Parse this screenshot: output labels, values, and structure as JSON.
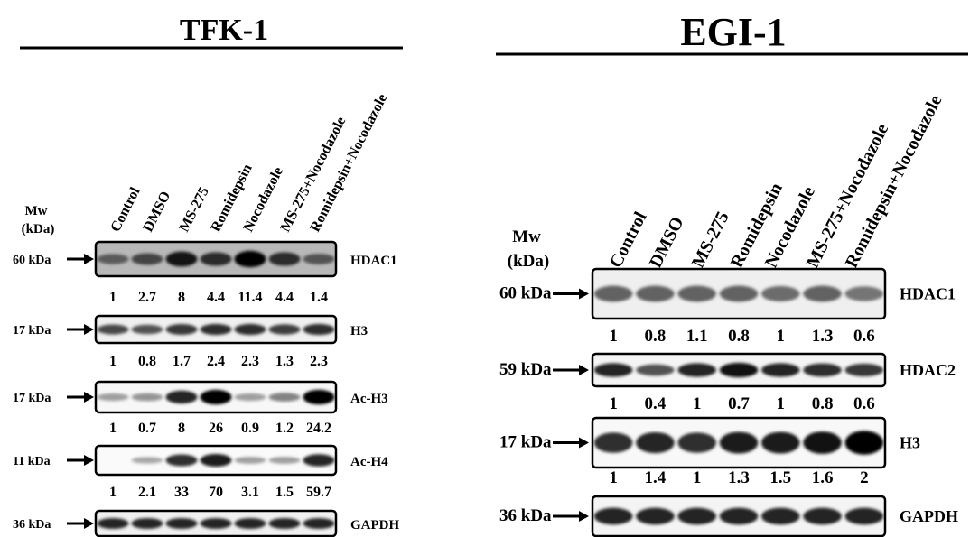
{
  "panels": [
    {
      "title": "TFK-1",
      "mw_label": [
        "Mw",
        "(kDa)"
      ],
      "lanes": [
        "Control",
        "DMSO",
        "MS-275",
        "Romidepsin",
        "Nocodazole",
        "MS-275+Nocodazole",
        "Romidepsin+Nocodazole"
      ],
      "blots": [
        {
          "name": "HDAC1",
          "mw": "60 kDa",
          "values": [
            "1",
            "2.7",
            "8",
            "4.4",
            "11.4",
            "4.4",
            "1.4"
          ],
          "background": "#b8b8b8",
          "intensity": [
            0.35,
            0.5,
            0.85,
            0.7,
            1.0,
            0.7,
            0.4
          ]
        },
        {
          "name": "H3",
          "mw": "17 kDa",
          "values": [
            "1",
            "0.8",
            "1.7",
            "2.4",
            "2.3",
            "1.3",
            "2.3"
          ],
          "background": "#f0f0f0",
          "intensity": [
            0.6,
            0.55,
            0.7,
            0.75,
            0.75,
            0.65,
            0.75
          ]
        },
        {
          "name": "Ac-H3",
          "mw": "17 kDa",
          "values": [
            "1",
            "0.7",
            "8",
            "26",
            "0.9",
            "1.2",
            "24.2"
          ],
          "background": "#f7f7f7",
          "intensity": [
            0.15,
            0.2,
            0.8,
            1.0,
            0.15,
            0.3,
            1.0
          ]
        },
        {
          "name": "Ac-H4",
          "mw": "11 kDa",
          "values": [
            "1",
            "2.1",
            "33",
            "70",
            "3.1",
            "1.5",
            "59.7"
          ],
          "background": "#fafafa",
          "intensity": [
            0.0,
            0.1,
            0.75,
            0.85,
            0.15,
            0.15,
            0.8
          ]
        },
        {
          "name": "GAPDH",
          "mw": "36 kDa",
          "values": [],
          "background": "#f0f0f0",
          "intensity": [
            0.8,
            0.8,
            0.8,
            0.8,
            0.8,
            0.8,
            0.8
          ]
        }
      ]
    },
    {
      "title": "EGI-1",
      "mw_label": [
        "Mw",
        "(kDa)"
      ],
      "lanes": [
        "Control",
        "DMSO",
        "MS-275",
        "Romidepsin",
        "Nocodazole",
        "MS-275+Nocodazole",
        "Romidepsin+Nocodazole"
      ],
      "blots": [
        {
          "name": "HDAC1",
          "mw": "60 kDa",
          "values": [
            "1",
            "0.8",
            "1.1",
            "0.8",
            "1",
            "1.3",
            "0.6"
          ],
          "background": "#efefef",
          "intensity": [
            0.45,
            0.45,
            0.45,
            0.45,
            0.4,
            0.45,
            0.35
          ]
        },
        {
          "name": "HDAC2",
          "mw": "59 kDa",
          "values": [
            "1",
            "0.4",
            "1",
            "0.7",
            "1",
            "0.8",
            "0.6"
          ],
          "background": "#f4f4f4",
          "intensity": [
            0.8,
            0.55,
            0.8,
            0.9,
            0.8,
            0.75,
            0.7
          ]
        },
        {
          "name": "H3",
          "mw": "17 kDa",
          "values": [
            "1",
            "1.4",
            "1",
            "1.3",
            "1.5",
            "1.6",
            "2"
          ],
          "background": "#f8f8f8",
          "intensity": [
            0.75,
            0.8,
            0.75,
            0.85,
            0.85,
            0.9,
            1.0
          ]
        },
        {
          "name": "GAPDH",
          "mw": "36 kDa",
          "values": [],
          "background": "#f4f4f4",
          "intensity": [
            0.8,
            0.8,
            0.8,
            0.8,
            0.8,
            0.8,
            0.8
          ]
        }
      ]
    }
  ]
}
